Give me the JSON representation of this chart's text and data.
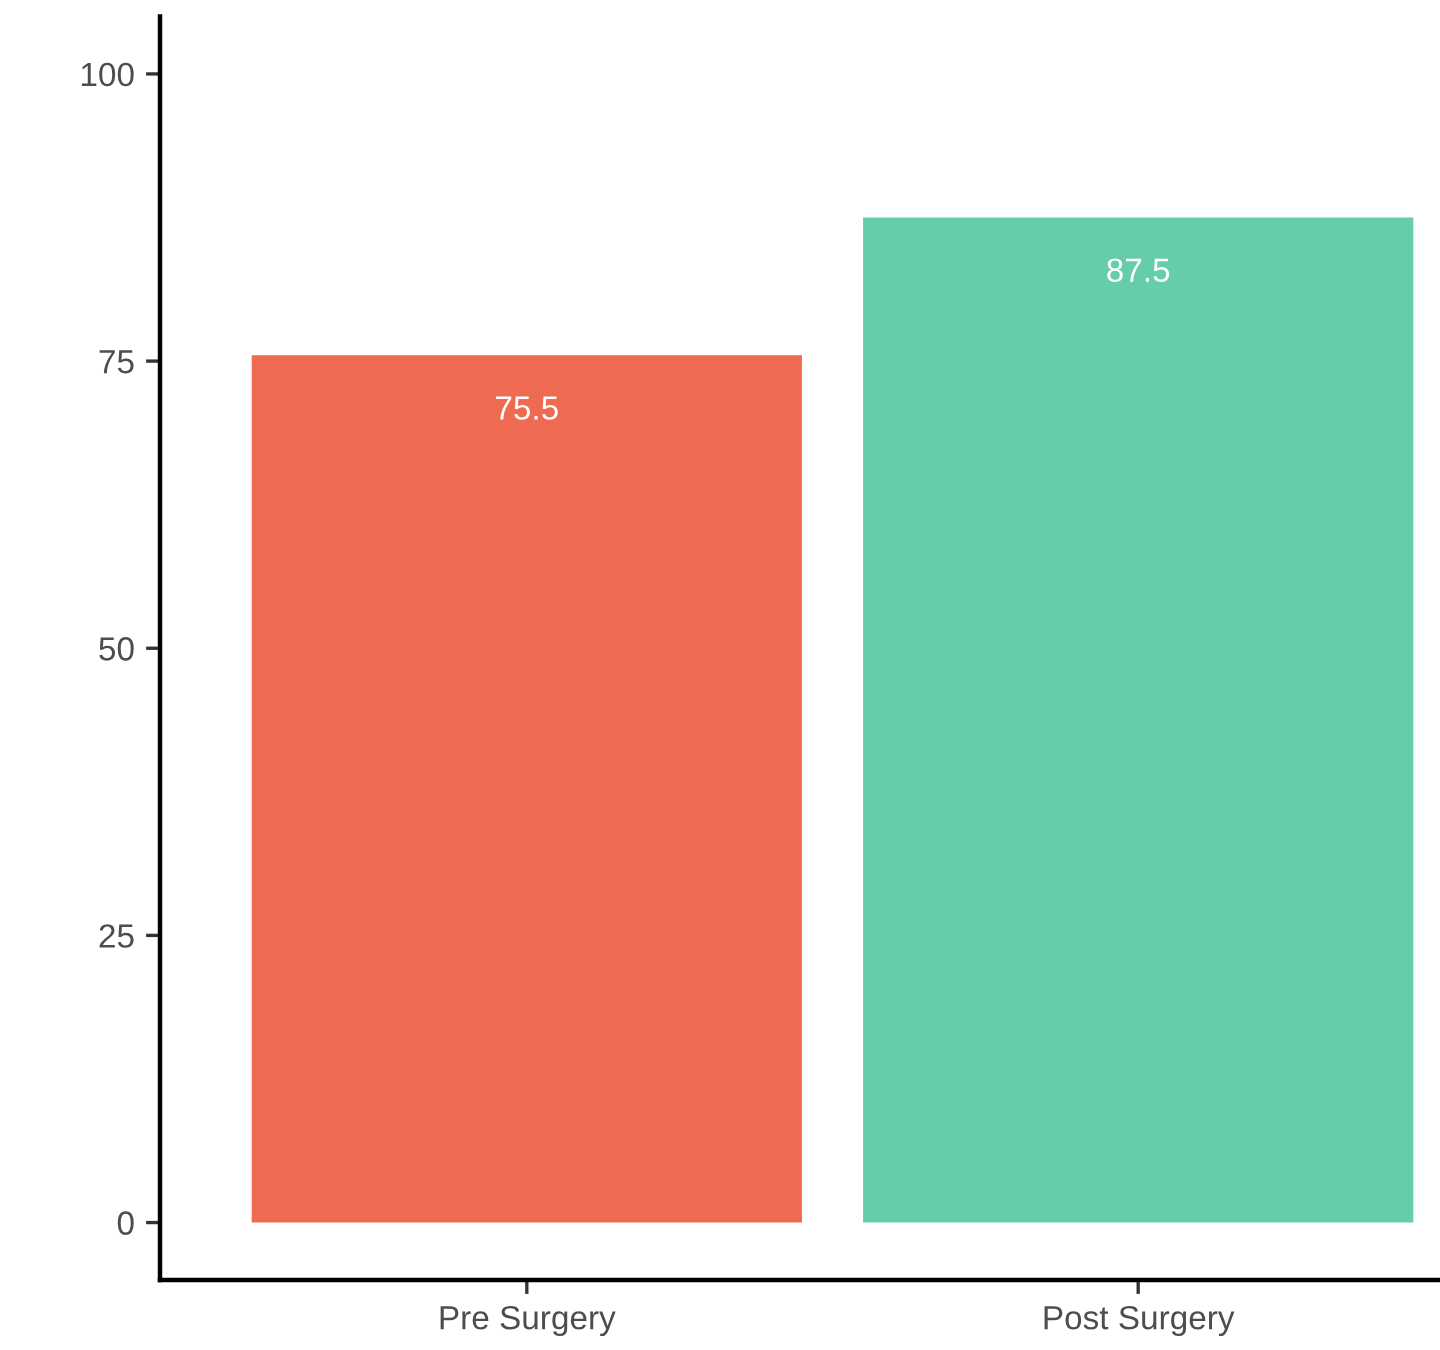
{
  "chart_data": {
    "type": "bar",
    "categories": [
      "Pre Surgery",
      "Post Surgery"
    ],
    "values": [
      75.5,
      87.5
    ],
    "colors": [
      "#ee6a50",
      "#66cdaa"
    ],
    "ylim": [
      -5,
      105
    ],
    "yticks": [
      0,
      25,
      50,
      75,
      100
    ],
    "data_labels": true
  }
}
